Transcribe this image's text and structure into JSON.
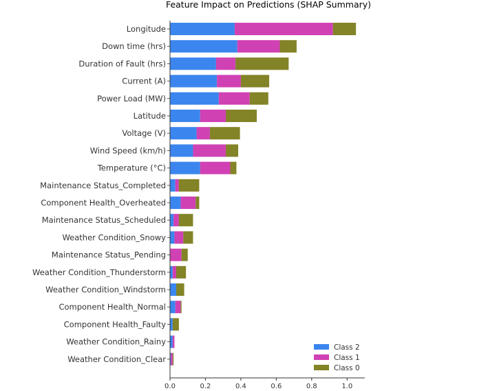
{
  "chart_data": {
    "type": "bar",
    "orientation": "horizontal",
    "stacked": true,
    "title": "Feature Impact on Predictions (SHAP Summary)",
    "xlabel": "",
    "ylabel": "",
    "xlim": [
      0,
      1.1
    ],
    "xticks": [
      "0.0",
      "0.2",
      "0.4",
      "0.6",
      "0.8",
      "1.0"
    ],
    "xtick_values": [
      0,
      0.2,
      0.4,
      0.6,
      0.8,
      1.0
    ],
    "grid": false,
    "legend_position": "bottom-right",
    "categories": [
      "Longitude",
      "Down time (hrs)",
      "Duration of Fault (hrs)",
      "Current (A)",
      "Power Load (MW)",
      "Latitude",
      "Voltage (V)",
      "Wind Speed (km/h)",
      "Temperature (°C)",
      "Maintenance Status_Completed",
      "Component Health_Overheated",
      "Maintenance Status_Scheduled",
      "Weather Condition_Snowy",
      "Maintenance Status_Pending",
      "Weather Condition_Thunderstorm",
      "Weather Condition_Windstorm",
      "Component Health_Normal",
      "Component Health_Faulty",
      "Weather Condition_Rainy",
      "Weather Condition_Clear"
    ],
    "series": [
      {
        "name": "Class 2",
        "color": "#3b86ee",
        "values": [
          0.365,
          0.38,
          0.26,
          0.265,
          0.275,
          0.17,
          0.15,
          0.13,
          0.17,
          0.03,
          0.06,
          0.02,
          0.025,
          0.0,
          0.015,
          0.035,
          0.03,
          0.015,
          0.015,
          0.005
        ]
      },
      {
        "name": "Class 1",
        "color": "#d041b4",
        "values": [
          0.555,
          0.24,
          0.11,
          0.135,
          0.175,
          0.145,
          0.075,
          0.185,
          0.17,
          0.02,
          0.085,
          0.03,
          0.05,
          0.065,
          0.02,
          0.0,
          0.03,
          0.0,
          0.01,
          0.01
        ]
      },
      {
        "name": "Class 0",
        "color": "#838327",
        "values": [
          0.13,
          0.095,
          0.3,
          0.16,
          0.105,
          0.175,
          0.17,
          0.07,
          0.035,
          0.115,
          0.02,
          0.08,
          0.055,
          0.035,
          0.055,
          0.045,
          0.005,
          0.035,
          0.0,
          0.005
        ]
      }
    ]
  }
}
